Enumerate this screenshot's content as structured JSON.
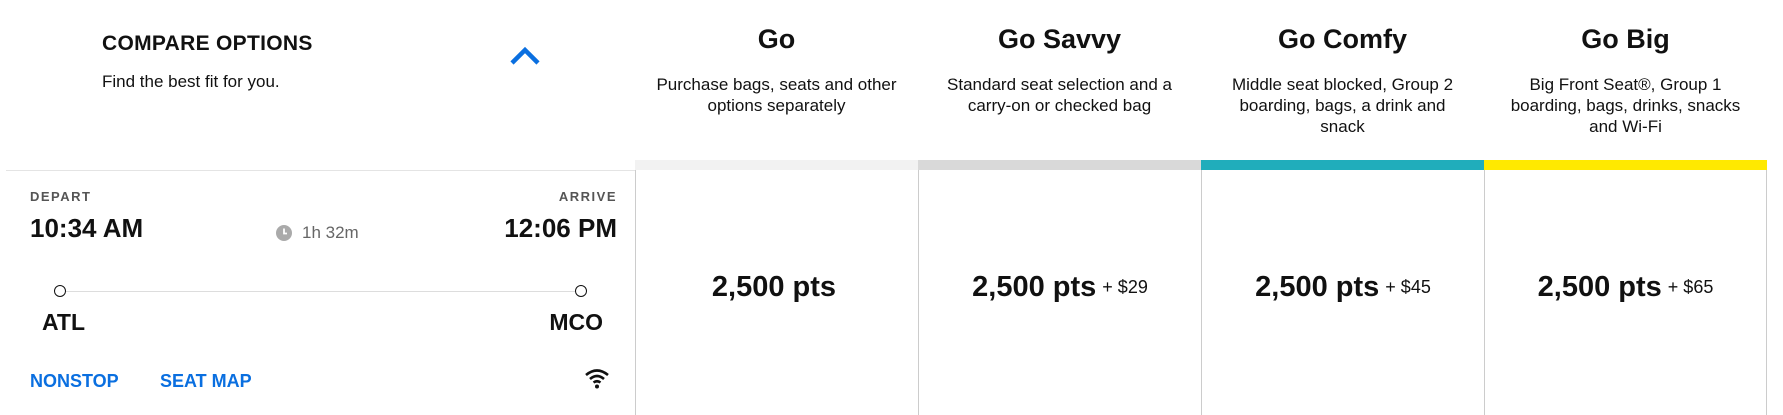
{
  "compare": {
    "title": "COMPARE OPTIONS",
    "subtitle": "Find the best fit for you.",
    "toggle_icon": "chevron-up-icon"
  },
  "flight": {
    "depart_label": "DEPART",
    "arrive_label": "ARRIVE",
    "depart_time": "10:34 AM",
    "arrive_time": "12:06 PM",
    "duration": "1h 32m",
    "origin": "ATL",
    "destination": "MCO",
    "nonstop_label": "NONSTOP",
    "seat_map_label": "SEAT MAP",
    "amenity_icon": "wifi-icon"
  },
  "accent_color": "#0a6fe0",
  "options": [
    {
      "title": "Go",
      "description": "Purchase bags, seats and other options separately",
      "color": "#f2f2f2",
      "points": "2,500 pts",
      "cash": ""
    },
    {
      "title": "Go Savvy",
      "description": "Standard seat selection and a carry-on or checked bag",
      "color": "#d9d9d9",
      "points": "2,500 pts",
      "cash": "+ $29"
    },
    {
      "title": "Go Comfy",
      "description": "Middle seat blocked, Group 2 boarding, bags, a drink and snack",
      "color": "#20adbb",
      "points": "2,500 pts",
      "cash": "+ $45"
    },
    {
      "title": "Go Big",
      "description": "Big Front Seat®, Group 1 boarding, bags, drinks, snacks and Wi-Fi",
      "color": "#ffe900",
      "points": "2,500 pts",
      "cash": "+ $65"
    }
  ]
}
